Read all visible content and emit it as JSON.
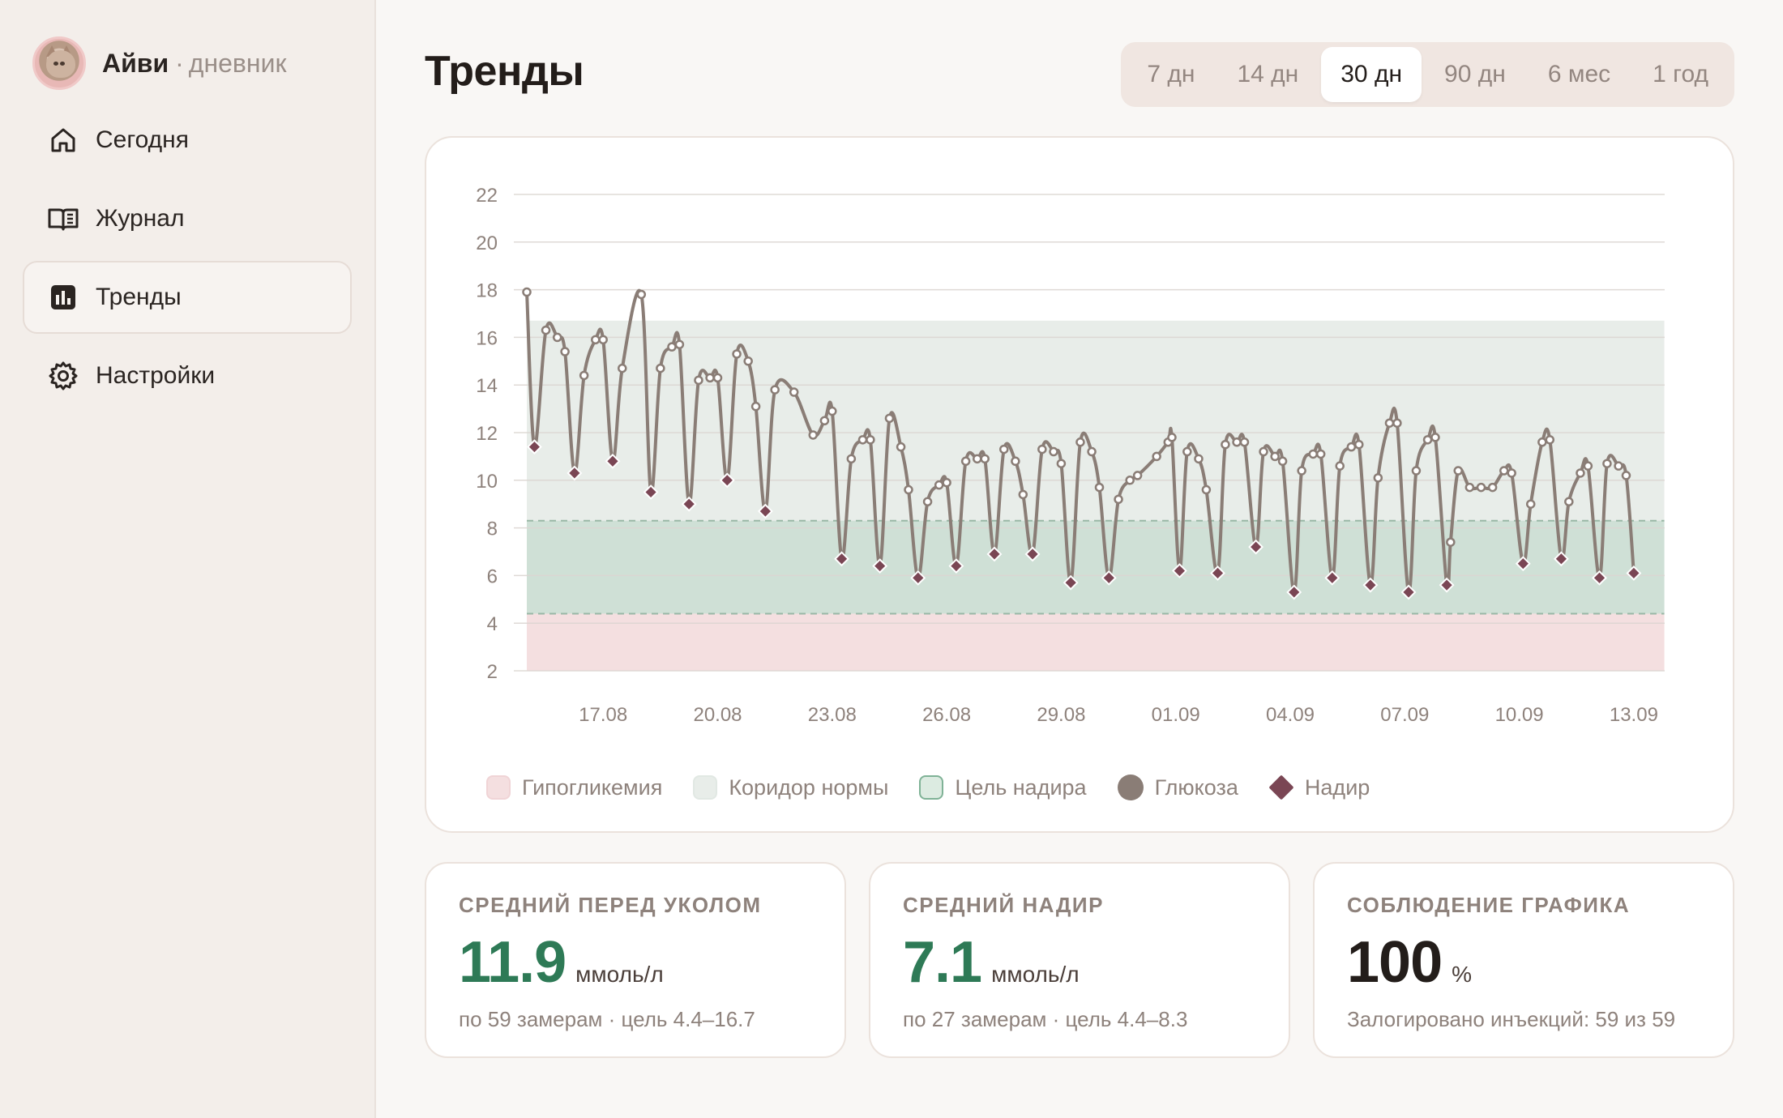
{
  "app": {
    "name": "Айви",
    "separator": "·",
    "subtitle": "дневник"
  },
  "sidebar": {
    "items": [
      {
        "label": "Сегодня",
        "icon": "home-icon",
        "active": false
      },
      {
        "label": "Журнал",
        "icon": "book-icon",
        "active": false
      },
      {
        "label": "Тренды",
        "icon": "bar-chart-icon",
        "active": true
      },
      {
        "label": "Настройки",
        "icon": "gear-icon",
        "active": false
      }
    ]
  },
  "page": {
    "title": "Тренды"
  },
  "range": {
    "options": [
      "7 дн",
      "14 дн",
      "30 дн",
      "90 дн",
      "6 мес",
      "1 год"
    ],
    "selected": "30 дн"
  },
  "legend": {
    "hypo": "Гипогликемия",
    "corridor": "Коридор нормы",
    "nadir_target": "Цель надира",
    "glucose": "Глюкоза",
    "nadir": "Надир"
  },
  "colors": {
    "hypo_band": "#f4dfe0",
    "corridor_band": "#e8ede9",
    "nadir_band": "#cfe0d6",
    "glucose_line": "#8a7d76",
    "nadir_marker": "#7a4654",
    "accent_green": "#2e7a56"
  },
  "chart_data": {
    "type": "line",
    "ylim": [
      2,
      22
    ],
    "yticks": [
      2,
      4,
      6,
      8,
      10,
      12,
      14,
      16,
      18,
      20,
      22
    ],
    "xlim": [
      0,
      29.8
    ],
    "xtick_labels": [
      "17.08",
      "20.08",
      "23.08",
      "26.08",
      "29.08",
      "01.09",
      "04.09",
      "07.09",
      "10.09",
      "13.09"
    ],
    "xtick_positions": [
      2,
      5,
      8,
      11,
      14,
      17,
      20,
      23,
      26,
      29
    ],
    "bands": {
      "hypoglycemia": [
        2,
        4.4
      ],
      "normal_corridor": [
        4.4,
        16.7
      ],
      "nadir_target": [
        4.4,
        8.3
      ]
    },
    "series": [
      {
        "name": "Глюкоза",
        "points": [
          [
            0,
            17.9
          ],
          [
            0.2,
            11.4
          ],
          [
            0.5,
            16.3
          ],
          [
            0.8,
            16.0
          ],
          [
            1.0,
            15.4
          ],
          [
            1.25,
            10.3
          ],
          [
            1.5,
            14.4
          ],
          [
            1.8,
            15.9
          ],
          [
            2.0,
            15.9
          ],
          [
            2.25,
            10.8
          ],
          [
            2.5,
            14.7
          ],
          [
            3.0,
            17.8
          ],
          [
            3.25,
            9.5
          ],
          [
            3.5,
            14.7
          ],
          [
            3.8,
            15.6
          ],
          [
            4.0,
            15.7
          ],
          [
            4.25,
            9.0
          ],
          [
            4.5,
            14.2
          ],
          [
            4.8,
            14.3
          ],
          [
            5.0,
            14.3
          ],
          [
            5.25,
            10.0
          ],
          [
            5.5,
            15.3
          ],
          [
            5.8,
            15.0
          ],
          [
            6.0,
            13.1
          ],
          [
            6.25,
            8.7
          ],
          [
            6.5,
            13.8
          ],
          [
            7.0,
            13.7
          ],
          [
            7.5,
            11.9
          ],
          [
            7.8,
            12.5
          ],
          [
            8.0,
            12.9
          ],
          [
            8.25,
            6.7
          ],
          [
            8.5,
            10.9
          ],
          [
            8.8,
            11.7
          ],
          [
            9.0,
            11.7
          ],
          [
            9.25,
            6.4
          ],
          [
            9.5,
            12.6
          ],
          [
            9.8,
            11.4
          ],
          [
            10.0,
            9.6
          ],
          [
            10.25,
            5.9
          ],
          [
            10.5,
            9.1
          ],
          [
            10.8,
            9.8
          ],
          [
            11.0,
            9.9
          ],
          [
            11.25,
            6.4
          ],
          [
            11.5,
            10.8
          ],
          [
            11.8,
            10.9
          ],
          [
            12.0,
            10.9
          ],
          [
            12.25,
            6.9
          ],
          [
            12.5,
            11.3
          ],
          [
            12.8,
            10.8
          ],
          [
            13.0,
            9.4
          ],
          [
            13.25,
            6.9
          ],
          [
            13.5,
            11.3
          ],
          [
            13.8,
            11.2
          ],
          [
            14.0,
            10.7
          ],
          [
            14.25,
            5.7
          ],
          [
            14.5,
            11.6
          ],
          [
            14.8,
            11.2
          ],
          [
            15.0,
            9.7
          ],
          [
            15.25,
            5.9
          ],
          [
            15.5,
            9.2
          ],
          [
            15.8,
            10.0
          ],
          [
            16.0,
            10.2
          ],
          [
            16.5,
            11.0
          ],
          [
            16.8,
            11.6
          ],
          [
            16.9,
            11.8
          ],
          [
            17.1,
            6.2
          ],
          [
            17.3,
            11.2
          ],
          [
            17.6,
            10.9
          ],
          [
            17.8,
            9.6
          ],
          [
            18.1,
            6.1
          ],
          [
            18.3,
            11.5
          ],
          [
            18.6,
            11.6
          ],
          [
            18.8,
            11.6
          ],
          [
            19.1,
            7.2
          ],
          [
            19.3,
            11.2
          ],
          [
            19.6,
            11.0
          ],
          [
            19.8,
            10.8
          ],
          [
            20.1,
            5.3
          ],
          [
            20.3,
            10.4
          ],
          [
            20.6,
            11.1
          ],
          [
            20.8,
            11.1
          ],
          [
            21.1,
            5.9
          ],
          [
            21.3,
            10.6
          ],
          [
            21.6,
            11.4
          ],
          [
            21.8,
            11.5
          ],
          [
            22.1,
            5.6
          ],
          [
            22.3,
            10.1
          ],
          [
            22.6,
            12.4
          ],
          [
            22.8,
            12.4
          ],
          [
            23.1,
            5.3
          ],
          [
            23.3,
            10.4
          ],
          [
            23.6,
            11.7
          ],
          [
            23.8,
            11.8
          ],
          [
            24.1,
            5.6
          ],
          [
            24.2,
            7.4
          ],
          [
            24.4,
            10.4
          ],
          [
            24.7,
            9.7
          ],
          [
            25.0,
            9.7
          ],
          [
            25.3,
            9.7
          ],
          [
            25.6,
            10.4
          ],
          [
            25.8,
            10.3
          ],
          [
            26.1,
            6.5
          ],
          [
            26.3,
            9.0
          ],
          [
            26.6,
            11.6
          ],
          [
            26.8,
            11.7
          ],
          [
            27.1,
            6.7
          ],
          [
            27.3,
            9.1
          ],
          [
            27.6,
            10.3
          ],
          [
            27.8,
            10.6
          ],
          [
            28.1,
            5.9
          ],
          [
            28.3,
            10.7
          ],
          [
            28.6,
            10.6
          ],
          [
            28.8,
            10.2
          ],
          [
            29.0,
            6.1
          ]
        ]
      },
      {
        "name": "Надир",
        "points": [
          [
            0.2,
            11.4
          ],
          [
            1.25,
            10.3
          ],
          [
            2.25,
            10.8
          ],
          [
            3.25,
            9.5
          ],
          [
            4.25,
            9.0
          ],
          [
            5.25,
            10.0
          ],
          [
            6.25,
            8.7
          ],
          [
            8.25,
            6.7
          ],
          [
            9.25,
            6.4
          ],
          [
            10.25,
            5.9
          ],
          [
            11.25,
            6.4
          ],
          [
            12.25,
            6.9
          ],
          [
            13.25,
            6.9
          ],
          [
            14.25,
            5.7
          ],
          [
            15.25,
            5.9
          ],
          [
            17.1,
            6.2
          ],
          [
            18.1,
            6.1
          ],
          [
            19.1,
            7.2
          ],
          [
            20.1,
            5.3
          ],
          [
            21.1,
            5.9
          ],
          [
            22.1,
            5.6
          ],
          [
            23.1,
            5.3
          ],
          [
            24.1,
            5.6
          ],
          [
            26.1,
            6.5
          ],
          [
            27.1,
            6.7
          ],
          [
            28.1,
            5.9
          ],
          [
            29.0,
            6.1
          ]
        ]
      }
    ]
  },
  "stats": [
    {
      "label": "СРЕДНИЙ ПЕРЕД УКОЛОМ",
      "value": "11.9",
      "unit": "ммоль/л",
      "note": "по 59 замерам · цель 4.4–16.7",
      "color": "#2e7a56"
    },
    {
      "label": "СРЕДНИЙ НАДИР",
      "value": "7.1",
      "unit": "ммоль/л",
      "note": "по 27 замерам · цель 4.4–8.3",
      "color": "#2e7a56"
    },
    {
      "label": "СОБЛЮДЕНИЕ ГРАФИКА",
      "value": "100",
      "unit": "%",
      "note": "Залогировано инъекций: 59 из 59",
      "color": "#231d1a"
    }
  ]
}
